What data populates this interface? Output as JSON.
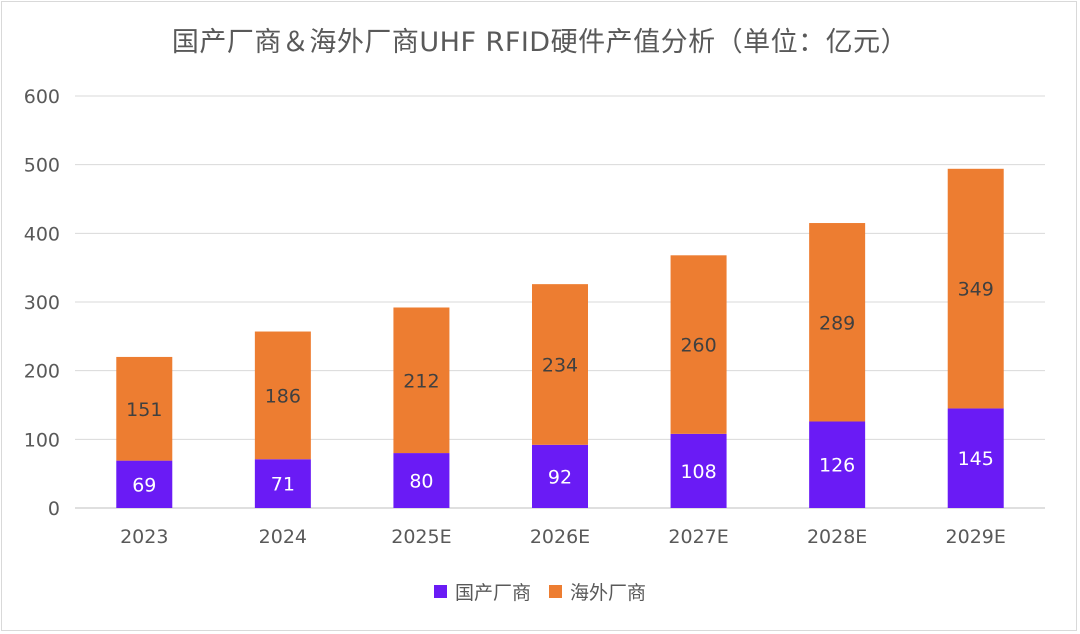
{
  "chart_data": {
    "type": "bar",
    "stacked": true,
    "title": "国产厂商＆海外厂商UHF RFID硬件产值分析（单位：亿元）",
    "categories": [
      "2023",
      "2024",
      "2025E",
      "2026E",
      "2027E",
      "2028E",
      "2029E"
    ],
    "series": [
      {
        "name": "国产厂商",
        "color": "#6a1bf5",
        "values": [
          69,
          71,
          80,
          92,
          108,
          126,
          145
        ]
      },
      {
        "name": "海外厂商",
        "color": "#ed7d31",
        "values": [
          151,
          186,
          212,
          234,
          260,
          289,
          349
        ]
      }
    ],
    "ylim": [
      0,
      600
    ],
    "yticks": [
      "0",
      "100",
      "200",
      "300",
      "400",
      "500",
      "600"
    ],
    "grid": true,
    "legend_position": "bottom"
  }
}
